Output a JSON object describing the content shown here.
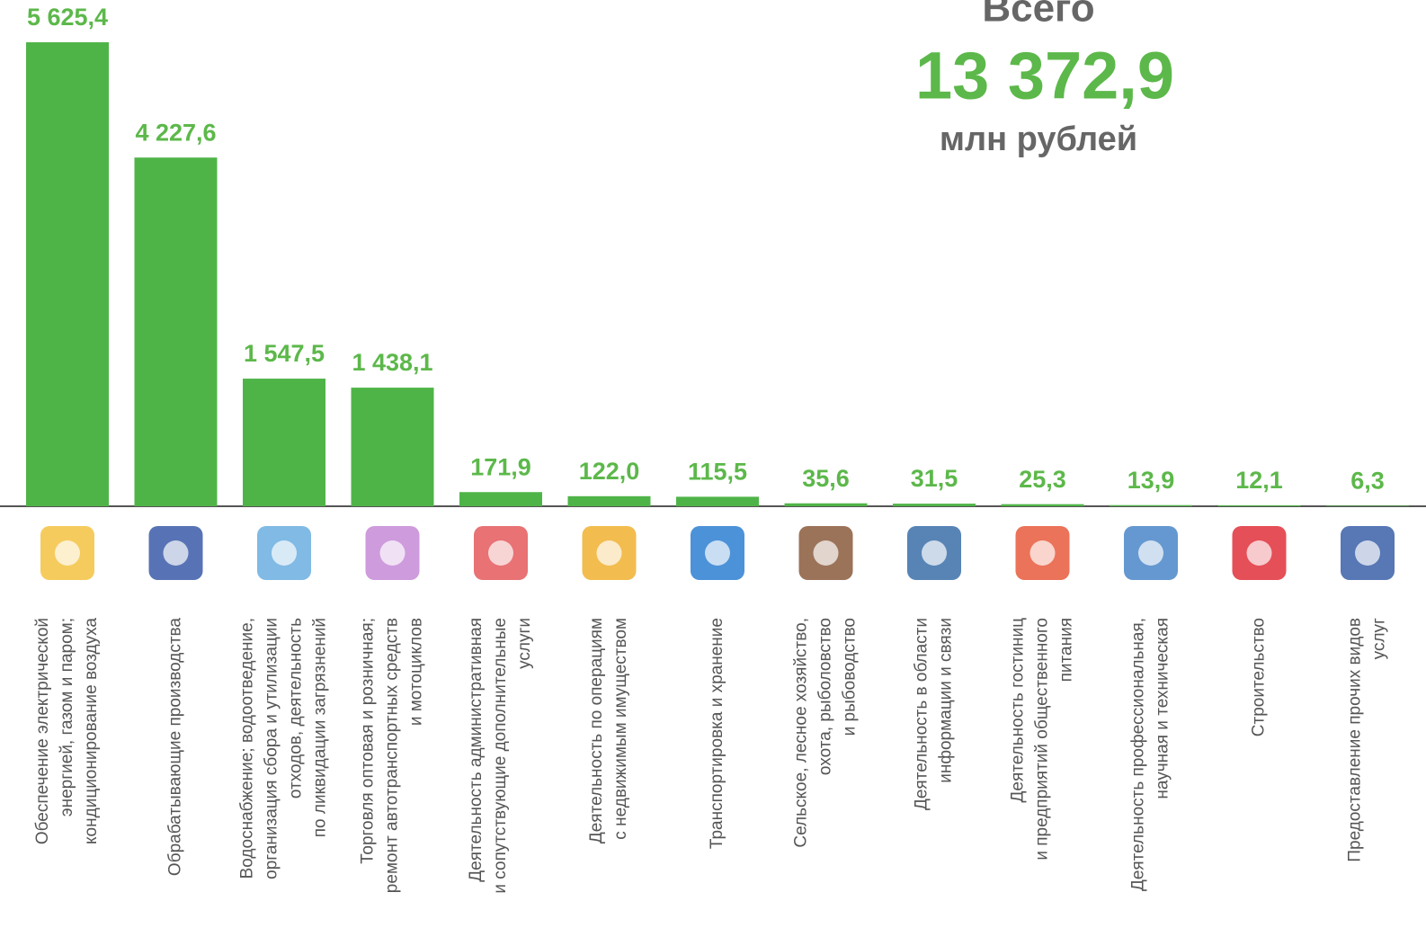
{
  "chart_data": {
    "type": "bar",
    "total_caption": "Всего",
    "total_value": 13372.9,
    "total_label": "13 372,9",
    "total_unit": "млн рублей",
    "color": "#4fb448",
    "label_color": "#5cb84a",
    "categories": [
      [
        "Обеспечение электрической",
        "энергией, газом и паром;",
        "кондиционирование воздуха"
      ],
      [
        "Обрабатывающие производства"
      ],
      [
        "Водоснабжение; водоотведение,",
        "организация сбора и утилизации",
        "отходов, деятельность",
        "по ликвидации загрязнений"
      ],
      [
        "Торговля оптовая и розничная;",
        "ремонт автотранспортных средств",
        "и мотоциклов"
      ],
      [
        "Деятельность административная",
        "и сопутствующие дополнительные",
        "услуги"
      ],
      [
        "Деятельность по операциям",
        "с недвижимым  имуществом"
      ],
      [
        "Транспортировка и хранение"
      ],
      [
        "Сельское, лесное хозяйство,",
        "охота, рыболовство",
        "и рыбоводство"
      ],
      [
        "Деятельность в области",
        "информации и связи"
      ],
      [
        "Деятельность гостиниц",
        "и предприятий общественного",
        "питания"
      ],
      [
        "Деятельность профессиональная,",
        "научная и техническая"
      ],
      [
        "Строительство"
      ],
      [
        "Предоставление прочих видов",
        "услуг"
      ]
    ],
    "values": [
      5625.4,
      4227.6,
      1547.5,
      1438.1,
      171.9,
      122.0,
      115.5,
      35.6,
      31.5,
      25.3,
      13.9,
      12.1,
      6.3
    ],
    "value_labels": [
      "5 625,4",
      "4 227,6",
      "1 547,5",
      "1 438,1",
      "171,9",
      "122,0",
      "115,5",
      "35,6",
      "31,5",
      "25,3",
      "13,9",
      "12,1",
      "6,3"
    ]
  }
}
